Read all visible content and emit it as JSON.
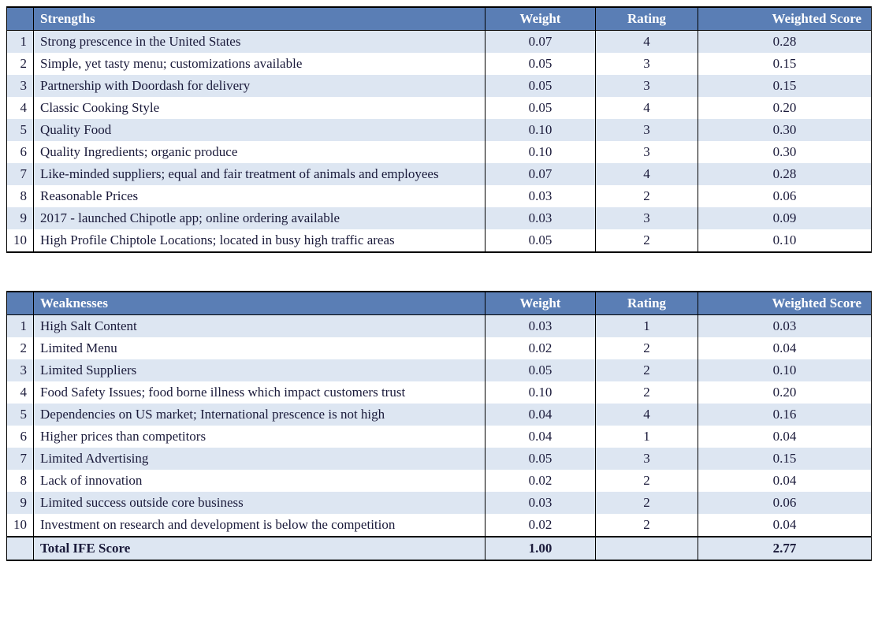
{
  "colors": {
    "header_bg": "#5a7eb5",
    "header_text": "#ffffff",
    "row_odd_bg": "#dde6f2",
    "row_even_bg": "#ffffff",
    "border": "#000000",
    "text": "#1a1a3a"
  },
  "typography": {
    "font_family": "Times New Roman",
    "cell_fontsize": 17,
    "header_fontsize": 17
  },
  "columns": {
    "num_width": 34,
    "weight_width": 140,
    "rating_width": 130,
    "score_width": 220
  },
  "strengths": {
    "headers": {
      "num": "",
      "desc": "Strengths",
      "weight": "Weight",
      "rating": "Rating",
      "score": "Weighted Score"
    },
    "rows": [
      {
        "n": "1",
        "desc": "Strong prescence in the United States",
        "w": "0.07",
        "r": "4",
        "s": "0.28"
      },
      {
        "n": "2",
        "desc": "Simple, yet tasty menu; customizations available",
        "w": "0.05",
        "r": "3",
        "s": "0.15"
      },
      {
        "n": "3",
        "desc": "Partnership with Doordash for delivery",
        "w": "0.05",
        "r": "3",
        "s": "0.15"
      },
      {
        "n": "4",
        "desc": "Classic Cooking Style",
        "w": "0.05",
        "r": "4",
        "s": "0.20"
      },
      {
        "n": "5",
        "desc": "Quality Food",
        "w": "0.10",
        "r": "3",
        "s": "0.30"
      },
      {
        "n": "6",
        "desc": "Quality Ingredients; organic produce",
        "w": "0.10",
        "r": "3",
        "s": "0.30"
      },
      {
        "n": "7",
        "desc": "Like-minded suppliers; equal and fair treatment of animals and employees",
        "w": "0.07",
        "r": "4",
        "s": "0.28"
      },
      {
        "n": "8",
        "desc": "Reasonable Prices",
        "w": "0.03",
        "r": "2",
        "s": "0.06"
      },
      {
        "n": "9",
        "desc": "2017 - launched Chipotle app; online ordering available",
        "w": "0.03",
        "r": "3",
        "s": "0.09"
      },
      {
        "n": "10",
        "desc": "High Profile Chiptole Locations; located in busy high traffic areas",
        "w": "0.05",
        "r": "2",
        "s": "0.10"
      }
    ]
  },
  "weaknesses": {
    "headers": {
      "num": "",
      "desc": "Weaknesses",
      "weight": "Weight",
      "rating": "Rating",
      "score": "Weighted Score"
    },
    "rows": [
      {
        "n": "1",
        "desc": "High Salt Content",
        "w": "0.03",
        "r": "1",
        "s": "0.03"
      },
      {
        "n": "2",
        "desc": "Limited Menu",
        "w": "0.02",
        "r": "2",
        "s": "0.04"
      },
      {
        "n": "3",
        "desc": "Limited Suppliers",
        "w": "0.05",
        "r": "2",
        "s": "0.10"
      },
      {
        "n": "4",
        "desc": "Food Safety Issues; food borne illness which impact customers trust",
        "w": "0.10",
        "r": "2",
        "s": "0.20"
      },
      {
        "n": "5",
        "desc": "Dependencies on US market; International prescence is not high",
        "w": "0.04",
        "r": "4",
        "s": "0.16"
      },
      {
        "n": "6",
        "desc": "Higher prices than competitors",
        "w": "0.04",
        "r": "1",
        "s": "0.04"
      },
      {
        "n": "7",
        "desc": "Limited Advertising",
        "w": "0.05",
        "r": "3",
        "s": "0.15"
      },
      {
        "n": "8",
        "desc": "Lack of innovation",
        "w": "0.02",
        "r": "2",
        "s": "0.04"
      },
      {
        "n": "9",
        "desc": "Limited success outside core business",
        "w": "0.03",
        "r": "2",
        "s": "0.06"
      },
      {
        "n": "10",
        "desc": "Investment on research and development is below the competition",
        "w": "0.02",
        "r": "2",
        "s": "0.04"
      }
    ],
    "total": {
      "label": "Total IFE Score",
      "weight": "1.00",
      "rating": "",
      "score": "2.77"
    }
  }
}
